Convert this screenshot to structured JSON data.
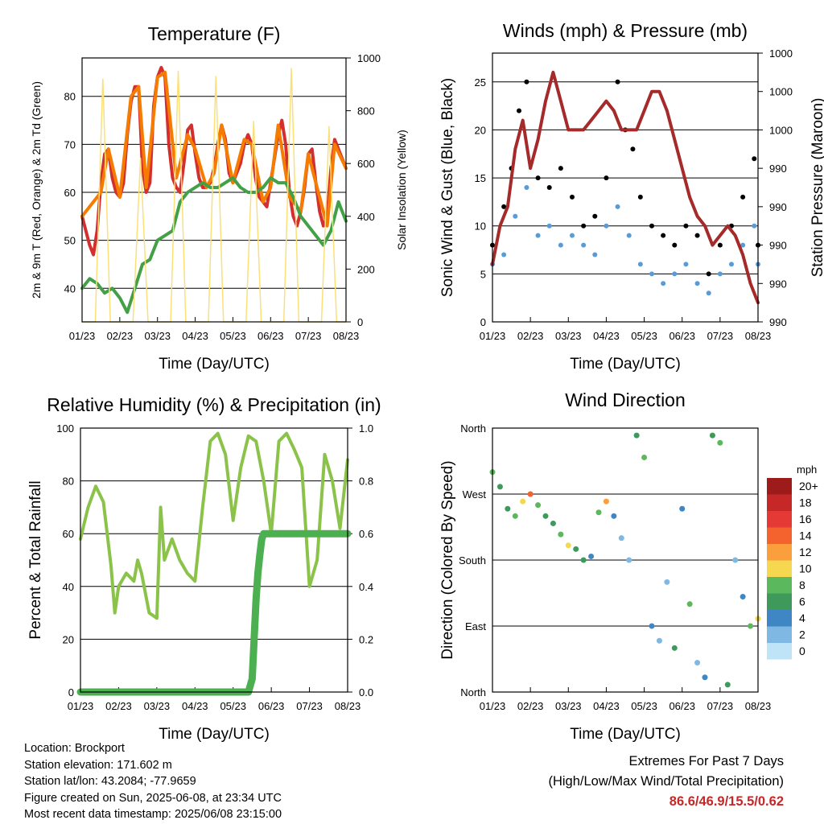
{
  "info": {
    "location": "Location: Brockport",
    "elevation": "Station elevation: 171.602 m",
    "latlon": "Station lat/lon: 43.2084; -77.9659",
    "created": "Figure created on Sun, 2025-06-08, at 23:34 UTC",
    "timestamp": "Most recent data timestamp: 2025/06/08 23:15:00"
  },
  "extremes": {
    "title": "Extremes For Past 7 Days",
    "subtitle": "(High/Low/Max Wind/Total Precipitation)",
    "values": "86.6/46.9/15.5/0.62",
    "value_color": "#c62828"
  },
  "chart_data": [
    {
      "type": "line",
      "title": "Temperature (F)",
      "xlabel": "Time (Day/UTC)",
      "ylabel": "2m & 9m T (Red, Orange) & 2m Td (Green)",
      "y2label": "Solar Insolation (Yellow)",
      "x_ticks": [
        "01/23",
        "02/23",
        "03/23",
        "04/23",
        "05/23",
        "06/23",
        "07/23",
        "08/23"
      ],
      "xlim": [
        0,
        7
      ],
      "ylim": [
        33,
        88
      ],
      "y_ticks": [
        40,
        50,
        60,
        70,
        80
      ],
      "y2lim": [
        0,
        1000
      ],
      "y2_ticks": [
        0,
        200,
        400,
        600,
        800,
        1000
      ],
      "grid": "horizontal",
      "series": [
        {
          "name": "2m T",
          "axis": "left",
          "color": "#d32f2f",
          "x": [
            0,
            0.1,
            0.2,
            0.3,
            0.4,
            0.5,
            0.6,
            0.7,
            0.8,
            0.9,
            1.0,
            1.1,
            1.2,
            1.3,
            1.4,
            1.5,
            1.6,
            1.7,
            1.8,
            1.9,
            2.0,
            2.1,
            2.2,
            2.3,
            2.4,
            2.5,
            2.6,
            2.7,
            2.8,
            2.9,
            3.0,
            3.1,
            3.2,
            3.3,
            3.4,
            3.5,
            3.6,
            3.7,
            3.8,
            3.9,
            4.0,
            4.1,
            4.2,
            4.3,
            4.4,
            4.5,
            4.6,
            4.7,
            4.8,
            4.9,
            5.0,
            5.1,
            5.2,
            5.3,
            5.4,
            5.5,
            5.6,
            5.7,
            5.8,
            5.9,
            6.0,
            6.1,
            6.2,
            6.3,
            6.4,
            6.5,
            6.6,
            6.7,
            6.8,
            6.9,
            7.0
          ],
          "y": [
            55,
            52,
            49,
            47,
            52,
            62,
            68,
            69,
            63,
            60,
            59,
            62,
            72,
            79,
            82,
            82,
            65,
            60,
            62,
            78,
            84,
            86,
            84,
            70,
            63,
            61,
            60,
            66,
            73,
            74,
            68,
            63,
            61,
            61,
            62,
            65,
            70,
            74,
            71,
            64,
            62,
            64,
            66,
            70,
            72,
            70,
            63,
            59,
            58,
            57,
            62,
            67,
            72,
            75,
            70,
            60,
            55,
            53,
            56,
            61,
            68,
            69,
            62,
            56,
            53,
            55,
            65,
            71,
            69,
            67,
            65
          ]
        },
        {
          "name": "9m T",
          "axis": "left",
          "color": "#f57c00",
          "x": [
            0,
            0.5,
            0.7,
            1.0,
            1.3,
            1.5,
            1.7,
            2.0,
            2.2,
            2.5,
            2.8,
            3.0,
            3.3,
            3.5,
            3.7,
            4.0,
            4.3,
            4.5,
            4.8,
            5.0,
            5.2,
            5.5,
            5.8,
            6.0,
            6.2,
            6.5,
            6.7,
            7.0
          ],
          "y": [
            55,
            60,
            69,
            59,
            80,
            82,
            61,
            84,
            85,
            63,
            72,
            69,
            61,
            64,
            74,
            62,
            71,
            70,
            58,
            61,
            74,
            59,
            56,
            68,
            62,
            53,
            70,
            65
          ]
        },
        {
          "name": "2m Td",
          "axis": "left",
          "color": "#43a047",
          "x": [
            0,
            0.2,
            0.4,
            0.6,
            0.8,
            1.0,
            1.2,
            1.4,
            1.6,
            1.8,
            2.0,
            2.2,
            2.4,
            2.6,
            2.8,
            3.0,
            3.2,
            3.4,
            3.6,
            3.8,
            4.0,
            4.2,
            4.4,
            4.6,
            4.8,
            5.0,
            5.2,
            5.4,
            5.6,
            5.8,
            6.0,
            6.2,
            6.4,
            6.6,
            6.8,
            7.0
          ],
          "y": [
            40,
            42,
            41,
            39,
            40,
            38,
            35,
            40,
            45,
            46,
            50,
            51,
            52,
            58,
            60,
            61,
            62,
            61,
            61,
            62,
            63,
            61,
            60,
            60,
            61,
            63,
            62,
            62,
            59,
            55,
            53,
            51,
            49,
            52,
            58,
            54
          ]
        },
        {
          "name": "Solar Insolation",
          "axis": "right",
          "color": "#fbe07a",
          "x": [
            0,
            0.35,
            0.55,
            0.75,
            1.0,
            1.35,
            1.55,
            1.75,
            2.0,
            2.35,
            2.55,
            2.75,
            3.0,
            3.35,
            3.55,
            3.75,
            4.0,
            4.35,
            4.55,
            4.75,
            5.0,
            5.35,
            5.55,
            5.75,
            6.0,
            6.35,
            6.55,
            6.75,
            7.0
          ],
          "y": [
            0,
            0,
            920,
            0,
            0,
            0,
            620,
            0,
            0,
            0,
            950,
            0,
            0,
            0,
            930,
            0,
            0,
            0,
            760,
            0,
            0,
            0,
            960,
            0,
            0,
            0,
            740,
            0,
            0
          ]
        }
      ]
    },
    {
      "type": "scatter",
      "title": "Winds (mph) & Pressure (mb)",
      "xlabel": "Time (Day/UTC)",
      "ylabel": "Sonic Wind & Gust (Blue, Black)",
      "y2label": "Station Pressure (Maroon)",
      "x_ticks": [
        "01/23",
        "02/23",
        "03/23",
        "04/23",
        "05/23",
        "06/23",
        "07/23",
        "08/23"
      ],
      "xlim": [
        0,
        7
      ],
      "ylim": [
        0,
        28
      ],
      "y_ticks": [
        0,
        5,
        10,
        15,
        20,
        25
      ],
      "y2_ticks": [
        "990",
        "990",
        "990",
        "990",
        "990",
        "1000",
        "1000",
        "1000"
      ],
      "grid": "horizontal",
      "series": [
        {
          "name": "Wind",
          "axis": "left",
          "color": "#5b9bd5",
          "x": [
            0,
            0.3,
            0.6,
            0.9,
            1.2,
            1.5,
            1.8,
            2.1,
            2.4,
            2.7,
            3.0,
            3.3,
            3.6,
            3.9,
            4.2,
            4.5,
            4.8,
            5.1,
            5.4,
            5.7,
            6.0,
            6.3,
            6.6,
            6.9,
            7.0
          ],
          "y": [
            6,
            7,
            11,
            14,
            9,
            10,
            8,
            9,
            8,
            7,
            10,
            12,
            9,
            6,
            5,
            4,
            5,
            6,
            4,
            3,
            5,
            6,
            8,
            10,
            6
          ]
        },
        {
          "name": "Gust",
          "axis": "left",
          "color": "#000000",
          "x": [
            0,
            0.3,
            0.5,
            0.7,
            0.9,
            1.2,
            1.5,
            1.8,
            2.1,
            2.4,
            2.7,
            3.0,
            3.3,
            3.5,
            3.7,
            3.9,
            4.2,
            4.5,
            4.8,
            5.1,
            5.4,
            5.7,
            6.0,
            6.3,
            6.6,
            6.9,
            7.0
          ],
          "y": [
            8,
            12,
            16,
            22,
            25,
            15,
            14,
            16,
            13,
            10,
            11,
            15,
            25,
            20,
            18,
            13,
            10,
            9,
            8,
            10,
            9,
            5,
            8,
            10,
            13,
            17,
            8
          ]
        },
        {
          "name": "Station Pressure",
          "axis": "right",
          "color": "#a52a2a",
          "x": [
            0,
            0.2,
            0.4,
            0.6,
            0.8,
            1.0,
            1.2,
            1.4,
            1.6,
            1.8,
            2.0,
            2.2,
            2.4,
            2.6,
            2.8,
            3.0,
            3.2,
            3.4,
            3.6,
            3.8,
            4.0,
            4.2,
            4.4,
            4.6,
            4.8,
            5.0,
            5.2,
            5.4,
            5.6,
            5.8,
            6.0,
            6.2,
            6.4,
            6.6,
            6.8,
            7.0
          ],
          "y": [
            6,
            10,
            12,
            18,
            21,
            16,
            19,
            23,
            26,
            23,
            20,
            20,
            20,
            21,
            22,
            23,
            22,
            20,
            20,
            20,
            22,
            24,
            24,
            22,
            19,
            16,
            13,
            11,
            10,
            8,
            9,
            10,
            9,
            7,
            4,
            2
          ]
        }
      ]
    },
    {
      "type": "line",
      "title": "Relative Humidity (%) & Precipitation (in)",
      "xlabel": "Time (Day/UTC)",
      "ylabel": "Percent & Total Rainfall",
      "x_ticks": [
        "01/23",
        "02/23",
        "03/23",
        "04/23",
        "05/23",
        "06/23",
        "07/23",
        "08/23"
      ],
      "xlim": [
        0,
        7
      ],
      "ylim": [
        0,
        100
      ],
      "y_ticks": [
        0,
        20,
        40,
        60,
        80,
        100
      ],
      "y2lim": [
        0,
        1.0
      ],
      "y2_ticks": [
        "0.0",
        "0.2",
        "0.4",
        "0.6",
        "0.8",
        "1.0"
      ],
      "grid": "horizontal",
      "series": [
        {
          "name": "Relative Humidity",
          "axis": "left",
          "color": "#8bc34a",
          "x": [
            0,
            0.2,
            0.4,
            0.6,
            0.8,
            0.9,
            1.0,
            1.2,
            1.4,
            1.5,
            1.6,
            1.8,
            2.0,
            2.1,
            2.2,
            2.4,
            2.6,
            2.8,
            3.0,
            3.2,
            3.4,
            3.6,
            3.8,
            4.0,
            4.2,
            4.4,
            4.6,
            4.8,
            5.0,
            5.2,
            5.4,
            5.6,
            5.8,
            6.0,
            6.2,
            6.4,
            6.6,
            6.8,
            7.0
          ],
          "y": [
            58,
            70,
            78,
            72,
            48,
            30,
            40,
            45,
            42,
            50,
            45,
            30,
            28,
            70,
            50,
            58,
            50,
            45,
            42,
            70,
            95,
            98,
            90,
            65,
            85,
            97,
            95,
            80,
            60,
            95,
            98,
            92,
            85,
            40,
            50,
            90,
            80,
            62,
            88
          ]
        },
        {
          "name": "Total Precipitation",
          "axis": "right",
          "color": "#4caf50",
          "x": [
            0,
            1.0,
            2.0,
            3.0,
            4.0,
            4.4,
            4.5,
            4.55,
            4.6,
            4.65,
            4.7,
            4.75,
            4.8,
            5.0,
            6.0,
            7.0
          ],
          "y": [
            0,
            0,
            0,
            0,
            0,
            0,
            0.05,
            0.2,
            0.35,
            0.45,
            0.52,
            0.58,
            0.6,
            0.6,
            0.6,
            0.6
          ]
        }
      ]
    },
    {
      "type": "scatter",
      "title": "Wind Direction",
      "xlabel": "Time (Day/UTC)",
      "ylabel": "Direction (Colored By Speed)",
      "x_ticks": [
        "01/23",
        "02/23",
        "03/23",
        "04/23",
        "05/23",
        "06/23",
        "07/23",
        "08/23"
      ],
      "xlim": [
        0,
        7
      ],
      "y_ticks": [
        "North",
        "East",
        "South",
        "West",
        "North"
      ],
      "ylim": [
        0,
        360
      ],
      "grid": "horizontal",
      "colorbar": {
        "title": "mph",
        "labels": [
          "20+",
          "18",
          "16",
          "14",
          "12",
          "10",
          "8",
          "6",
          "4",
          "2",
          "0"
        ],
        "colors": [
          "#9e1b1b",
          "#c62828",
          "#e53935",
          "#f4622e",
          "#fb9e3c",
          "#f5d84f",
          "#5cb85c",
          "#3d9a5b",
          "#3f87c4",
          "#7fb8e2",
          "#bfe3f7"
        ]
      },
      "series": [
        {
          "name": "Direction",
          "x": [
            0,
            0.2,
            0.4,
            0.6,
            0.8,
            1.0,
            1.2,
            1.4,
            1.6,
            1.8,
            2.0,
            2.2,
            2.4,
            2.6,
            2.8,
            3.0,
            3.2,
            3.4,
            3.6,
            3.8,
            4.0,
            4.2,
            4.4,
            4.6,
            4.8,
            5.0,
            5.2,
            5.4,
            5.6,
            5.8,
            6.0,
            6.2,
            6.4,
            6.6,
            6.8,
            7.0
          ],
          "y": [
            300,
            280,
            250,
            240,
            260,
            270,
            255,
            240,
            230,
            215,
            200,
            195,
            180,
            185,
            245,
            260,
            240,
            210,
            180,
            350,
            320,
            90,
            70,
            150,
            60,
            250,
            120,
            40,
            20,
            350,
            340,
            10,
            180,
            130,
            90,
            100
          ],
          "speed": [
            8,
            6,
            6,
            8,
            10,
            14,
            8,
            6,
            6,
            8,
            10,
            6,
            6,
            4,
            8,
            12,
            4,
            2,
            2,
            6,
            8,
            4,
            2,
            2,
            6,
            4,
            8,
            2,
            4,
            6,
            8,
            6,
            2,
            4,
            8,
            10
          ]
        }
      ]
    }
  ]
}
